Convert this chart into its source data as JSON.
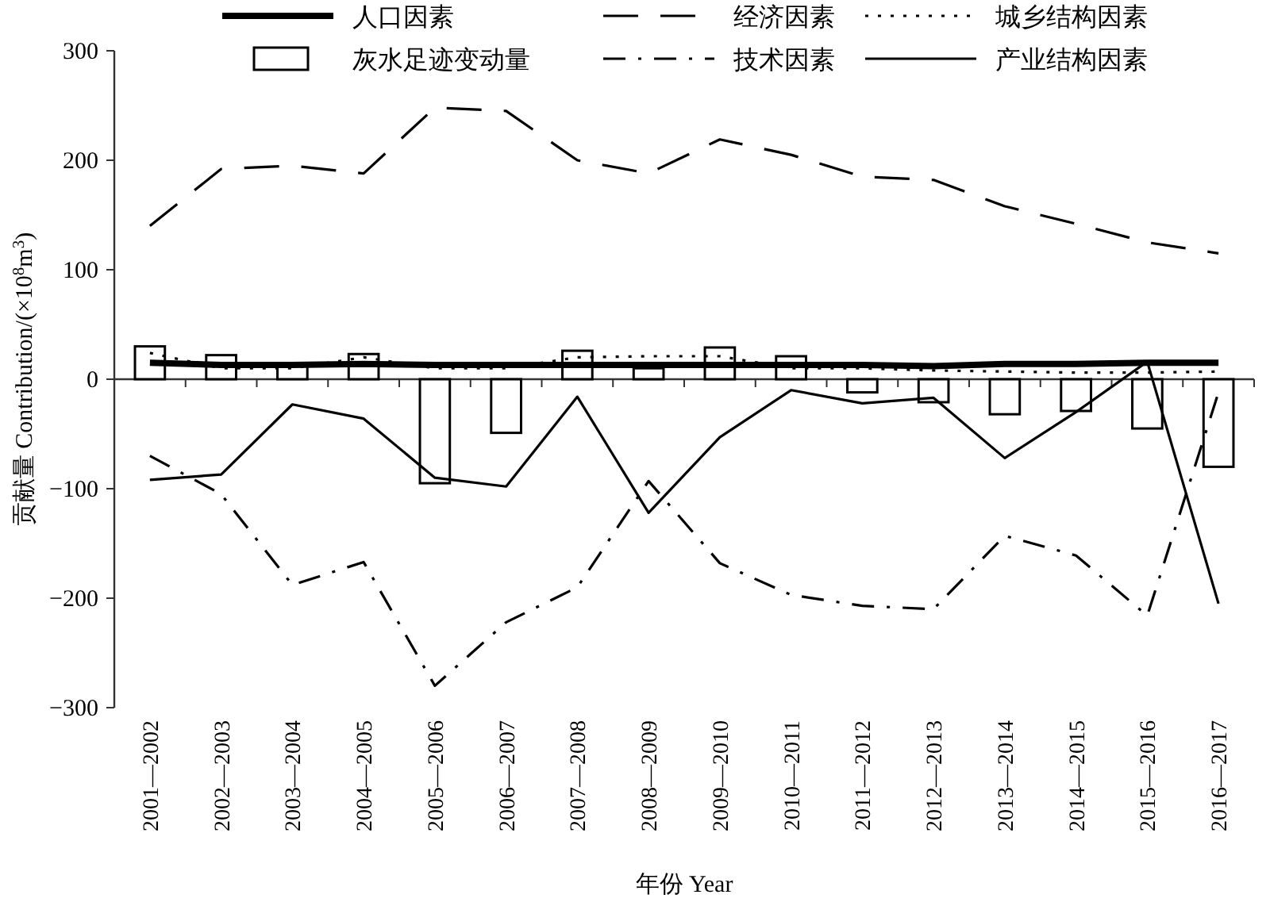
{
  "chart_data": {
    "type": "line",
    "xlabel": "年份 Year",
    "ylabel": "贡献量 Contribution/(×10$^{8}$m$^{3}$)",
    "categories": [
      "2001—2002",
      "2002—2003",
      "2003—2004",
      "2004—2005",
      "2005—2006",
      "2006—2007",
      "2007—2008",
      "2008—2009",
      "2009—2010",
      "2010—2011",
      "2011—2012",
      "2012—2013",
      "2013—2014",
      "2014—2015",
      "2015—2016",
      "2016—2017"
    ],
    "ylim": [
      -300,
      300
    ],
    "yticks": [
      -300,
      -200,
      -100,
      0,
      100,
      200,
      300
    ],
    "legend": "top",
    "marker": "none",
    "series": [
      {
        "name": "人口因素",
        "line_style": "solid",
        "color": "#000000",
        "values": [
          15,
          13,
          13,
          14,
          13,
          13,
          13,
          13,
          13,
          13,
          13,
          12,
          14,
          14,
          15,
          15
        ]
      },
      {
        "name": "经济因素",
        "line_style": "dashed",
        "color": "#000000",
        "values": [
          140,
          192,
          195,
          188,
          248,
          245,
          200,
          188,
          219,
          205,
          185,
          182,
          158,
          142,
          125,
          115
        ]
      },
      {
        "name": "城乡结构因素",
        "line_style": "dotted",
        "color": "#000000",
        "values": [
          24,
          10,
          10,
          20,
          10,
          10,
          20,
          21,
          21,
          10,
          10,
          8,
          7,
          6,
          6,
          7
        ]
      },
      {
        "name": "灰水足迹变动量",
        "type": "bar",
        "color": "#ffffff",
        "values": [
          30,
          22,
          13,
          23,
          -95,
          -49,
          26,
          10,
          29,
          21,
          -12,
          -21,
          -32,
          -29,
          -45,
          -80
        ]
      },
      {
        "name": "技术因素",
        "line_style": "dashdot",
        "color": "#000000",
        "values": [
          -70,
          -105,
          -188,
          -167,
          -280,
          -222,
          -190,
          -93,
          -168,
          -197,
          -207,
          -210,
          -143,
          -161,
          -216,
          -12
        ]
      },
      {
        "name": "产业结构因素",
        "line_style": "solid",
        "color": "#000000",
        "values": [
          -92,
          -87,
          -23,
          -36,
          -90,
          -98,
          -16,
          -122,
          -53,
          -10,
          -22,
          -17,
          -72,
          -30,
          16,
          -205
        ]
      }
    ]
  }
}
